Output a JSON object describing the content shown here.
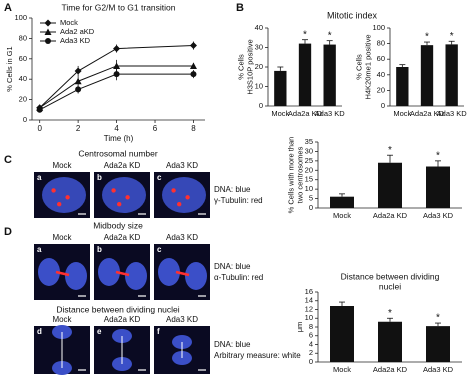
{
  "figure": {
    "panel_labels": [
      "A",
      "B",
      "C",
      "D"
    ],
    "b_title": "Mitotic index"
  },
  "centrosome": {
    "title": "Centrosomal number",
    "columns": [
      "Mock",
      "Ada2a KD",
      "Ada3 KD"
    ],
    "letters": [
      "a",
      "b",
      "c"
    ],
    "caption": [
      "DNA: blue",
      "γ-Tubulin: red"
    ]
  },
  "midbody": {
    "title": "Midbody size",
    "columns": [
      "Mock",
      "Ada2a KD",
      "Ada3 KD"
    ],
    "letters": [
      "a",
      "b",
      "c"
    ],
    "caption": [
      "DNA: blue",
      "α-Tubulin: red"
    ]
  },
  "distance": {
    "title": "Distance between dividing nuclei",
    "columns": [
      "Mock",
      "Ada2a KD",
      "Ada3 KD"
    ],
    "letters": [
      "d",
      "e",
      "f"
    ],
    "caption": [
      "DNA: blue",
      "Arbitrary measure: white"
    ]
  },
  "chart_data": [
    {
      "type": "line",
      "title": "Time for G2/M to G1 transition",
      "xlabel": "Time (h)",
      "ylabel": [
        "% Cells in G1"
      ],
      "x": [
        0,
        2,
        4,
        8
      ],
      "xlim": [
        -0.4,
        8.6
      ],
      "xticks": [
        0,
        2,
        4,
        6,
        8
      ],
      "ylim": [
        0,
        100
      ],
      "yticks": [
        0,
        20,
        40,
        60,
        80,
        100
      ],
      "series": [
        {
          "name": "Mock",
          "color": "#111111",
          "marker": "diamond",
          "values": [
            12,
            48,
            70,
            73
          ],
          "errors": [
            2,
            5,
            4,
            4
          ]
        },
        {
          "name": "Ada2 aKD",
          "color": "#111111",
          "marker": "triangle",
          "values": [
            12,
            38,
            53,
            53
          ],
          "errors": [
            2,
            5,
            6,
            3
          ]
        },
        {
          "name": "Ada3 KD",
          "color": "#111111",
          "marker": "circle",
          "values": [
            10,
            30,
            45,
            45
          ],
          "errors": [
            2,
            4,
            6,
            4
          ]
        }
      ]
    },
    {
      "type": "bar",
      "ylabel": [
        "% Cells",
        "H3S10P positive"
      ],
      "categories": [
        "Mock",
        "Ada2a KD",
        "Ada3 KD"
      ],
      "values": [
        18,
        32,
        31.5
      ],
      "errors": [
        2,
        2,
        2
      ],
      "significance": [
        null,
        "*",
        "*"
      ],
      "color": "#111111",
      "ylim": [
        0,
        40
      ],
      "yticks": [
        0,
        10,
        20,
        30,
        40
      ]
    },
    {
      "type": "bar",
      "ylabel": [
        "% Cells",
        "H4K20me1 positive"
      ],
      "categories": [
        "Mock",
        "Ada2a KD",
        "Ada3 KD"
      ],
      "values": [
        50,
        78,
        79
      ],
      "errors": [
        3,
        4,
        4
      ],
      "significance": [
        null,
        "*",
        "*"
      ],
      "color": "#111111",
      "ylim": [
        0,
        100
      ],
      "yticks": [
        0,
        20,
        40,
        60,
        80,
        100
      ]
    },
    {
      "type": "bar",
      "ylabel": [
        "% Cells with more than",
        "two centrosomes"
      ],
      "categories": [
        "Mock",
        "Ada2a KD",
        "Ada3 KD"
      ],
      "values": [
        6,
        24,
        22
      ],
      "errors": [
        1.5,
        4,
        3
      ],
      "significance": [
        null,
        "*",
        "*"
      ],
      "color": "#111111",
      "ylim": [
        0,
        35
      ],
      "yticks": [
        0,
        5,
        10,
        15,
        20,
        25,
        30,
        35
      ]
    },
    {
      "type": "bar",
      "title": [
        "Distance between dividing",
        "nuclei"
      ],
      "ylabel": [
        "μm"
      ],
      "categories": [
        "Mock",
        "Ada2a KD",
        "Ada3 KD"
      ],
      "values": [
        12.8,
        9.2,
        8.2
      ],
      "errors": [
        0.9,
        0.8,
        0.7
      ],
      "significance": [
        null,
        "*",
        "*"
      ],
      "color": "#111111",
      "ylim": [
        0,
        16
      ],
      "yticks": [
        0,
        2,
        4,
        6,
        8,
        10,
        12,
        14,
        16
      ]
    }
  ]
}
